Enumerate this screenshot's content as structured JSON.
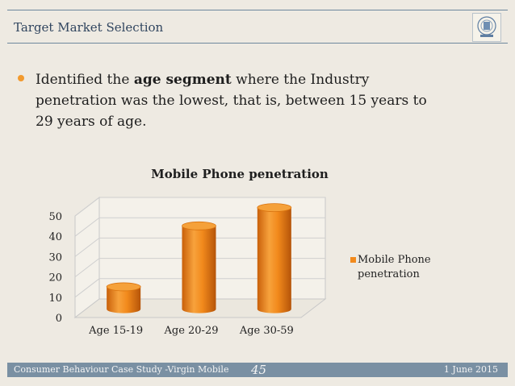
{
  "header": {
    "title": "Target Market Selection",
    "logo_icon": "institution-emblem-icon"
  },
  "bullet": {
    "before": "Identified the ",
    "bold": "age segment",
    "after": " where the Industry penetration was the lowest, that is, between 15 years to 29 years of age."
  },
  "chart_data": {
    "type": "bar",
    "title": "Mobile Phone penetration",
    "categories": [
      "Age 15-19",
      "Age 20-29",
      "Age 30-59"
    ],
    "series": [
      {
        "name": "Mobile Phone penetration",
        "values": [
          11,
          41,
          50
        ]
      }
    ],
    "ylim": [
      0,
      50
    ],
    "yticks": [
      "0",
      "10",
      "20",
      "30",
      "40",
      "50"
    ],
    "xlabel": "",
    "ylabel": "",
    "grid": true,
    "legend": "right",
    "bar_color": "#f28a1c"
  },
  "legend": {
    "line1": "Mobile Phone",
    "line2": "penetration"
  },
  "footer": {
    "left": "Consumer Behaviour Case Study -Virgin Mobile",
    "page": "45",
    "date": "1 June 2015"
  }
}
